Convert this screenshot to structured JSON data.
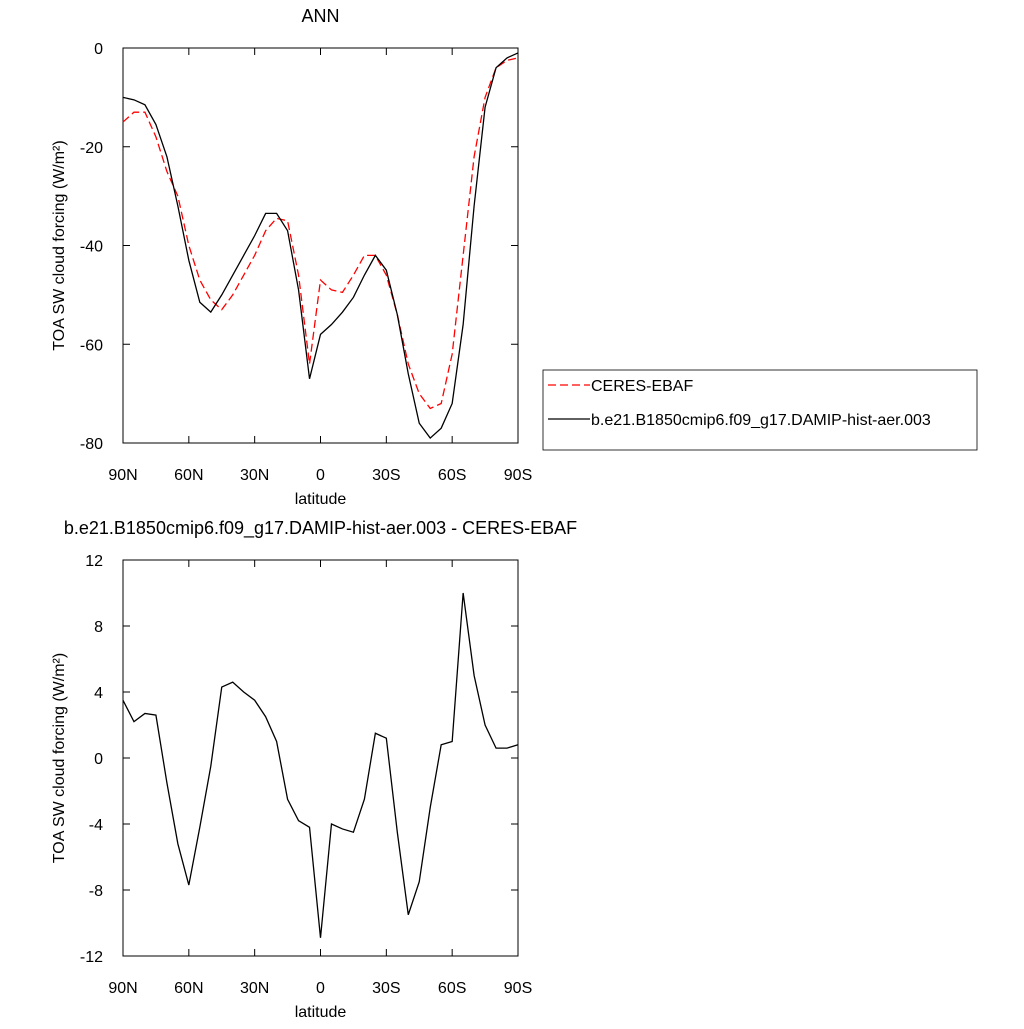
{
  "chart_data": [
    {
      "type": "line",
      "title": "ANN",
      "xlabel": "latitude",
      "ylabel": "TOA SW cloud forcing (W/m²)",
      "x": [
        90,
        85,
        80,
        75,
        70,
        65,
        60,
        55,
        50,
        45,
        40,
        35,
        30,
        25,
        20,
        15,
        10,
        5,
        0,
        -5,
        -10,
        -15,
        -20,
        -25,
        -30,
        -35,
        -40,
        -45,
        -50,
        -55,
        -60,
        -65,
        -70,
        -75,
        -80,
        -85,
        -90
      ],
      "xlim": [
        90,
        -90
      ],
      "xticks": [
        {
          "value": 90,
          "label": "90N"
        },
        {
          "value": 60,
          "label": "60N"
        },
        {
          "value": 30,
          "label": "30N"
        },
        0,
        {
          "value": -30,
          "label": "30S"
        },
        {
          "value": -60,
          "label": "60S"
        },
        {
          "value": -90,
          "label": "90S"
        }
      ],
      "ylim": [
        -80,
        0
      ],
      "yticks": [
        0,
        -20,
        -40,
        -60,
        -80
      ],
      "series": [
        {
          "name": "CERES-EBAF",
          "color": "#ff0000",
          "dashed": true,
          "values": [
            -15,
            -13,
            -13,
            -18,
            -25,
            -30,
            -40,
            -47,
            -51,
            -53,
            -50,
            -46,
            -42,
            -37,
            -34.5,
            -35,
            -46,
            -64,
            -47,
            -49,
            -49.5,
            -46,
            -42,
            -42,
            -46,
            -54,
            -64,
            -70,
            -73,
            -72,
            -62,
            -42,
            -22,
            -10,
            -4,
            -2.5,
            -2
          ]
        },
        {
          "name": "b.e21.B1850cmip6.f09_g17.DAMIP-hist-aer.003",
          "color": "#000000",
          "dashed": false,
          "values": [
            -10,
            -10.5,
            -11.5,
            -15.5,
            -22,
            -32,
            -43,
            -51.5,
            -53.5,
            -50,
            -46,
            -42,
            -38,
            -33.5,
            -33.5,
            -37,
            -49,
            -67,
            -58,
            -56,
            -53.5,
            -50.5,
            -46,
            -42,
            -45,
            -54,
            -66,
            -76,
            -79,
            -77,
            -72,
            -56,
            -32,
            -12,
            -4,
            -2,
            -1
          ]
        }
      ]
    },
    {
      "type": "line",
      "title": "b.e21.B1850cmip6.f09_g17.DAMIP-hist-aer.003 - CERES-EBAF",
      "xlabel": "latitude",
      "ylabel": "TOA SW cloud forcing (W/m²)",
      "x": [
        90,
        85,
        80,
        75,
        70,
        65,
        60,
        55,
        50,
        45,
        40,
        35,
        30,
        25,
        20,
        15,
        10,
        5,
        0,
        -5,
        -10,
        -15,
        -20,
        -25,
        -30,
        -35,
        -40,
        -45,
        -50,
        -55,
        -60,
        -65,
        -70,
        -75,
        -80,
        -85,
        -90
      ],
      "xlim": [
        90,
        -90
      ],
      "xticks": [
        {
          "value": 90,
          "label": "90N"
        },
        {
          "value": 60,
          "label": "60N"
        },
        {
          "value": 30,
          "label": "30N"
        },
        0,
        {
          "value": -30,
          "label": "30S"
        },
        {
          "value": -60,
          "label": "60S"
        },
        {
          "value": -90,
          "label": "90S"
        }
      ],
      "ylim": [
        -12,
        12
      ],
      "yticks": [
        12,
        8,
        4,
        0,
        -4,
        -8,
        -12
      ],
      "series": [
        {
          "color": "#000000",
          "dashed": false,
          "values": [
            3.5,
            2.2,
            2.7,
            2.6,
            -1.5,
            -5.2,
            -7.7,
            -4.2,
            -0.5,
            4.3,
            4.6,
            4.0,
            3.5,
            2.5,
            1.0,
            -2.5,
            -3.8,
            -4.2,
            -10.9,
            -4.0,
            -4.3,
            -4.5,
            -2.5,
            1.5,
            1.2,
            -4.5,
            -9.5,
            -7.5,
            -3.0,
            0.8,
            1.0,
            10.0,
            5.0,
            2.0,
            0.6,
            0.6,
            0.8
          ]
        }
      ]
    }
  ]
}
